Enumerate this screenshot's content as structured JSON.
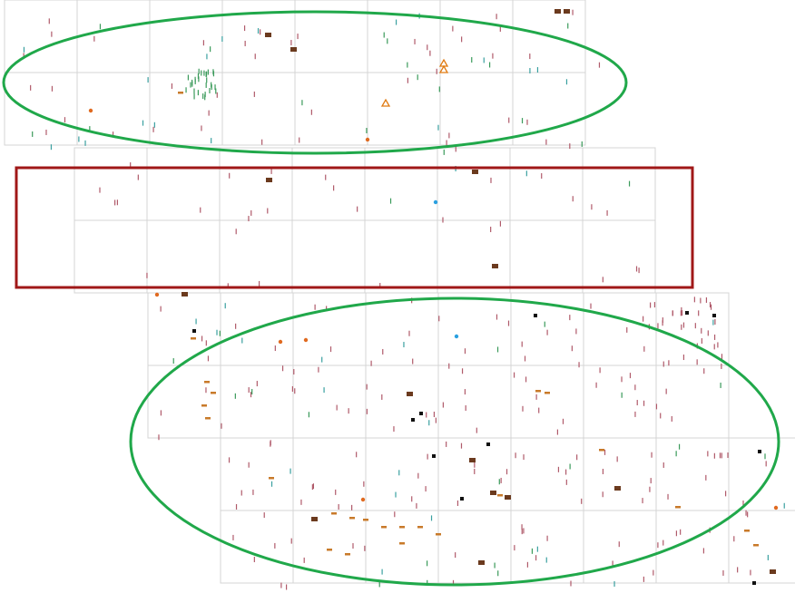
{
  "map": {
    "grid_color": "#d4d4d4",
    "highlight_ellipse_color": "#20a84a",
    "highlight_rect_color": "#a01818",
    "marker_colors": {
      "tick_red": "#b05a6a",
      "tick_green": "#3a9a5a",
      "tick_teal": "#3aa0a0",
      "square_brown": "#6b3a1e",
      "square_black": "#111111",
      "dot_orange": "#e06a20",
      "dot_blue": "#2aa0e0",
      "triangle_orange": "#e07a10",
      "dash_orange": "#c87a2a"
    },
    "highlights": [
      {
        "shape": "ellipse",
        "label": "",
        "color": "green"
      },
      {
        "shape": "rectangle",
        "label": "",
        "color": "red"
      },
      {
        "shape": "ellipse",
        "label": "",
        "color": "green"
      }
    ]
  }
}
